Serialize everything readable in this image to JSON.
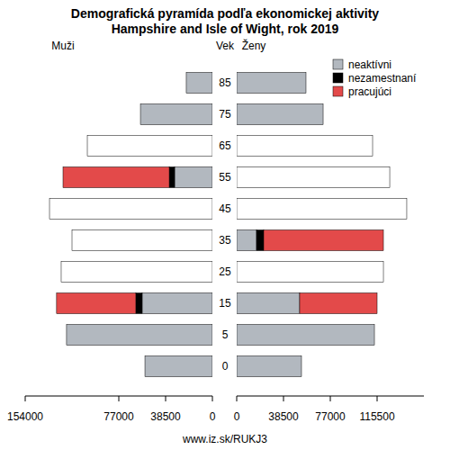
{
  "chart_data": {
    "type": "bar",
    "orientation": "horizontal",
    "stacked": true,
    "title": "Demografická pyramída podľa ekonomickej aktivity",
    "subtitle": "Hampshire and Isle of Wight, rok 2019",
    "y_label": "Vek",
    "source": "www.iz.sk/RUKJ3",
    "legend": "top-right",
    "categories": [
      0,
      5,
      15,
      25,
      35,
      45,
      55,
      65,
      75,
      85
    ],
    "panels": [
      {
        "label": "Muži",
        "xlim": [
          0,
          154000
        ],
        "xticks": [
          0,
          38500,
          77000,
          154000
        ],
        "series": [
          {
            "name": "neaktívni",
            "color": "#b2b8bf",
            "values": [
              55500,
              120000,
              57800,
              null,
              null,
              null,
              31100,
              null,
              59200,
              21500
            ]
          },
          {
            "name": "nezamestnaní",
            "color": "#000000",
            "values": [
              null,
              null,
              5200,
              null,
              null,
              null,
              4400,
              null,
              null,
              null
            ]
          },
          {
            "name": "pracujúci",
            "color": "#e34a4a",
            "values": [
              null,
              null,
              65200,
              null,
              null,
              null,
              87400,
              null,
              null,
              null
            ]
          }
        ],
        "totals": [
          null,
          null,
          null,
          124400,
          115500,
          134000,
          null,
          102900,
          null,
          null
        ]
      },
      {
        "label": "Ženy",
        "xlim": [
          0,
          154000
        ],
        "xticks": [
          0,
          38500,
          77000,
          115500
        ],
        "series": [
          {
            "name": "neaktívni",
            "color": "#b2b8bf",
            "values": [
              53300,
              113300,
              51800,
              null,
              16300,
              null,
              null,
              null,
              71100,
              57000
            ]
          },
          {
            "name": "nezamestnaní",
            "color": "#000000",
            "values": [
              null,
              null,
              null,
              null,
              5900,
              null,
              null,
              null,
              null,
              null
            ]
          },
          {
            "name": "pracujúci",
            "color": "#e34a4a",
            "values": [
              null,
              null,
              63700,
              null,
              98500,
              null,
              null,
              null,
              null,
              null
            ]
          }
        ],
        "totals": [
          null,
          null,
          null,
          120700,
          null,
          139900,
          125900,
          111800,
          null,
          null
        ]
      }
    ]
  }
}
